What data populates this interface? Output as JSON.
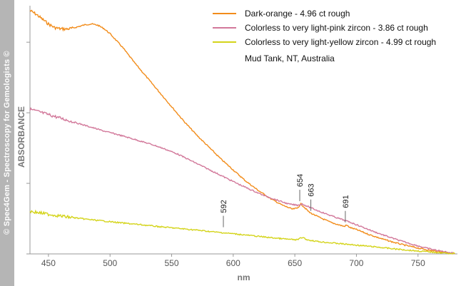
{
  "watermark": "© Spec4Gem - Spectroscopy for Gemologists ©",
  "chart_data": {
    "type": "line",
    "title": "",
    "xlabel": "nm",
    "ylabel": "ABSORBANCE",
    "xlim": [
      435,
      782
    ],
    "ylim": [
      0,
      1.02
    ],
    "x_ticks": [
      450,
      500,
      550,
      600,
      650,
      700,
      750
    ],
    "y_ticks": [
      0,
      0.29,
      0.58,
      0.87
    ],
    "grid": false,
    "legend_position": "top-right",
    "note": "Mud Tank, NT, Australia",
    "series": [
      {
        "name": "Dark-orange - 4.96 ct rough",
        "color": "#f28c1a",
        "points": [
          [
            435,
            1.0
          ],
          [
            440,
            0.985
          ],
          [
            445,
            0.965
          ],
          [
            450,
            0.945
          ],
          [
            455,
            0.93
          ],
          [
            460,
            0.925
          ],
          [
            465,
            0.924
          ],
          [
            470,
            0.928
          ],
          [
            475,
            0.935
          ],
          [
            480,
            0.942
          ],
          [
            485,
            0.945
          ],
          [
            490,
            0.94
          ],
          [
            495,
            0.926
          ],
          [
            500,
            0.905
          ],
          [
            510,
            0.85
          ],
          [
            520,
            0.785
          ],
          [
            530,
            0.725
          ],
          [
            540,
            0.665
          ],
          [
            550,
            0.605
          ],
          [
            560,
            0.545
          ],
          [
            570,
            0.49
          ],
          [
            580,
            0.44
          ],
          [
            590,
            0.39
          ],
          [
            600,
            0.345
          ],
          [
            610,
            0.3
          ],
          [
            620,
            0.262
          ],
          [
            630,
            0.228
          ],
          [
            640,
            0.2
          ],
          [
            648,
            0.184
          ],
          [
            652,
            0.188
          ],
          [
            655,
            0.205
          ],
          [
            658,
            0.19
          ],
          [
            662,
            0.17
          ],
          [
            670,
            0.15
          ],
          [
            680,
            0.128
          ],
          [
            690,
            0.113
          ],
          [
            692,
            0.118
          ],
          [
            695,
            0.108
          ],
          [
            700,
            0.1
          ],
          [
            710,
            0.08
          ],
          [
            720,
            0.063
          ],
          [
            730,
            0.048
          ],
          [
            740,
            0.035
          ],
          [
            750,
            0.024
          ],
          [
            760,
            0.014
          ],
          [
            770,
            0.008
          ],
          [
            780,
            0.002
          ]
        ]
      },
      {
        "name": "Colorless to very light-pink zircon - 3.86 ct rough",
        "color": "#d2789a",
        "points": [
          [
            435,
            0.595
          ],
          [
            445,
            0.58
          ],
          [
            455,
            0.565
          ],
          [
            465,
            0.55
          ],
          [
            475,
            0.535
          ],
          [
            485,
            0.52
          ],
          [
            495,
            0.505
          ],
          [
            505,
            0.492
          ],
          [
            515,
            0.478
          ],
          [
            525,
            0.463
          ],
          [
            535,
            0.448
          ],
          [
            545,
            0.43
          ],
          [
            555,
            0.41
          ],
          [
            565,
            0.385
          ],
          [
            575,
            0.36
          ],
          [
            585,
            0.335
          ],
          [
            595,
            0.31
          ],
          [
            605,
            0.285
          ],
          [
            615,
            0.262
          ],
          [
            625,
            0.24
          ],
          [
            635,
            0.222
          ],
          [
            645,
            0.205
          ],
          [
            652,
            0.2
          ],
          [
            656,
            0.205
          ],
          [
            660,
            0.196
          ],
          [
            665,
            0.185
          ],
          [
            675,
            0.165
          ],
          [
            685,
            0.147
          ],
          [
            695,
            0.13
          ],
          [
            705,
            0.11
          ],
          [
            715,
            0.09
          ],
          [
            725,
            0.072
          ],
          [
            735,
            0.055
          ],
          [
            745,
            0.04
          ],
          [
            755,
            0.026
          ],
          [
            765,
            0.015
          ],
          [
            775,
            0.006
          ],
          [
            780,
            0.002
          ]
        ]
      },
      {
        "name": "Colorless to very light-yellow zircon - 4.99 ct rough",
        "color": "#d4d41a",
        "points": [
          [
            435,
            0.175
          ],
          [
            450,
            0.163
          ],
          [
            465,
            0.152
          ],
          [
            480,
            0.143
          ],
          [
            495,
            0.135
          ],
          [
            510,
            0.127
          ],
          [
            525,
            0.12
          ],
          [
            540,
            0.112
          ],
          [
            555,
            0.105
          ],
          [
            570,
            0.098
          ],
          [
            585,
            0.09
          ],
          [
            600,
            0.083
          ],
          [
            615,
            0.075
          ],
          [
            630,
            0.067
          ],
          [
            645,
            0.06
          ],
          [
            652,
            0.058
          ],
          [
            656,
            0.068
          ],
          [
            660,
            0.058
          ],
          [
            670,
            0.05
          ],
          [
            685,
            0.043
          ],
          [
            700,
            0.036
          ],
          [
            715,
            0.029
          ],
          [
            730,
            0.021
          ],
          [
            745,
            0.014
          ],
          [
            760,
            0.008
          ],
          [
            770,
            0.004
          ],
          [
            780,
            0.001
          ]
        ]
      }
    ],
    "annotations": [
      {
        "label": "592",
        "x": 592,
        "y": 0.098
      },
      {
        "label": "654",
        "x": 654,
        "y": 0.205
      },
      {
        "label": "663",
        "x": 663,
        "y": 0.165
      },
      {
        "label": "691",
        "x": 691,
        "y": 0.118
      }
    ]
  }
}
